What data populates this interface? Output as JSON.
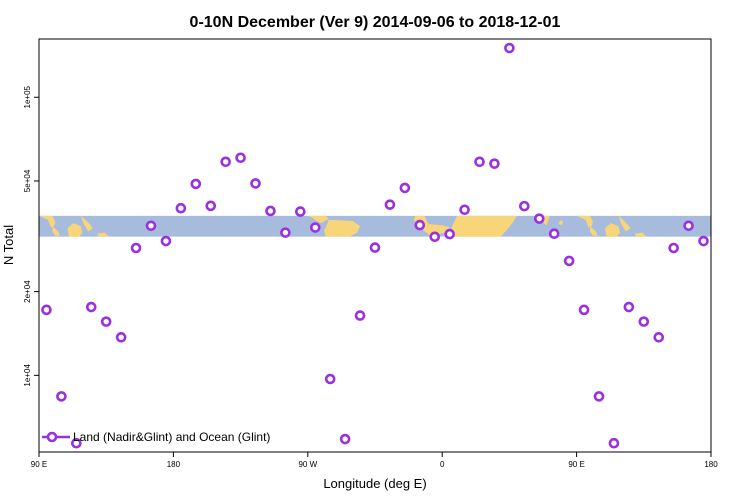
{
  "chart_data": {
    "type": "scatter",
    "title": "0-10N December (Ver 9)   2014-09-06 to 2018-12-01",
    "xlabel": "Longitude (deg E)",
    "ylabel": "N Total",
    "x_tick_values": [
      90,
      180,
      270,
      360,
      450,
      540
    ],
    "x_tick_labels": [
      "90 E",
      "180",
      "90 W",
      "0",
      "90 E",
      "180"
    ],
    "xlim": [
      90,
      540
    ],
    "y_scale": "log",
    "ylim": [
      5300,
      162000
    ],
    "y_tick_values": [
      10000,
      20000,
      50000,
      100000
    ],
    "y_tick_labels": [
      "1e+04",
      "2e+04",
      "5e+04",
      "1e+05"
    ],
    "band_y_range": [
      31500,
      37500
    ],
    "legend": {
      "label": "Land (Nadir&Glint) and Ocean (Glint)",
      "position": "bottom-left"
    },
    "colors": {
      "points": "#9A30E0",
      "ocean": "#A7BCDC",
      "land": "#F9D57A"
    },
    "series": [
      {
        "name": "Land (Nadir&Glint) and Ocean (Glint)",
        "x": [
          95,
          105,
          115,
          125,
          135,
          145,
          155,
          165,
          175,
          185,
          195,
          205,
          215,
          225,
          235,
          245,
          255,
          265,
          275,
          285,
          295,
          305,
          315,
          325,
          335,
          345,
          355,
          365,
          375,
          385,
          395,
          405,
          415,
          425,
          435,
          445,
          455,
          465,
          475,
          485,
          495,
          505,
          515,
          525,
          535
        ],
        "y": [
          17200,
          8400,
          5700,
          17600,
          15600,
          13700,
          28700,
          34500,
          30400,
          39900,
          48800,
          40700,
          58600,
          60600,
          49000,
          39000,
          32600,
          38800,
          34000,
          9700,
          5900,
          16400,
          28800,
          41100,
          47200,
          34700,
          31500,
          32200,
          39400,
          58600,
          57700,
          150300,
          40600,
          36600,
          32300,
          25800,
          17200,
          8400,
          5700,
          17600,
          15600,
          13700,
          28700,
          34500,
          30400
        ]
      }
    ]
  }
}
